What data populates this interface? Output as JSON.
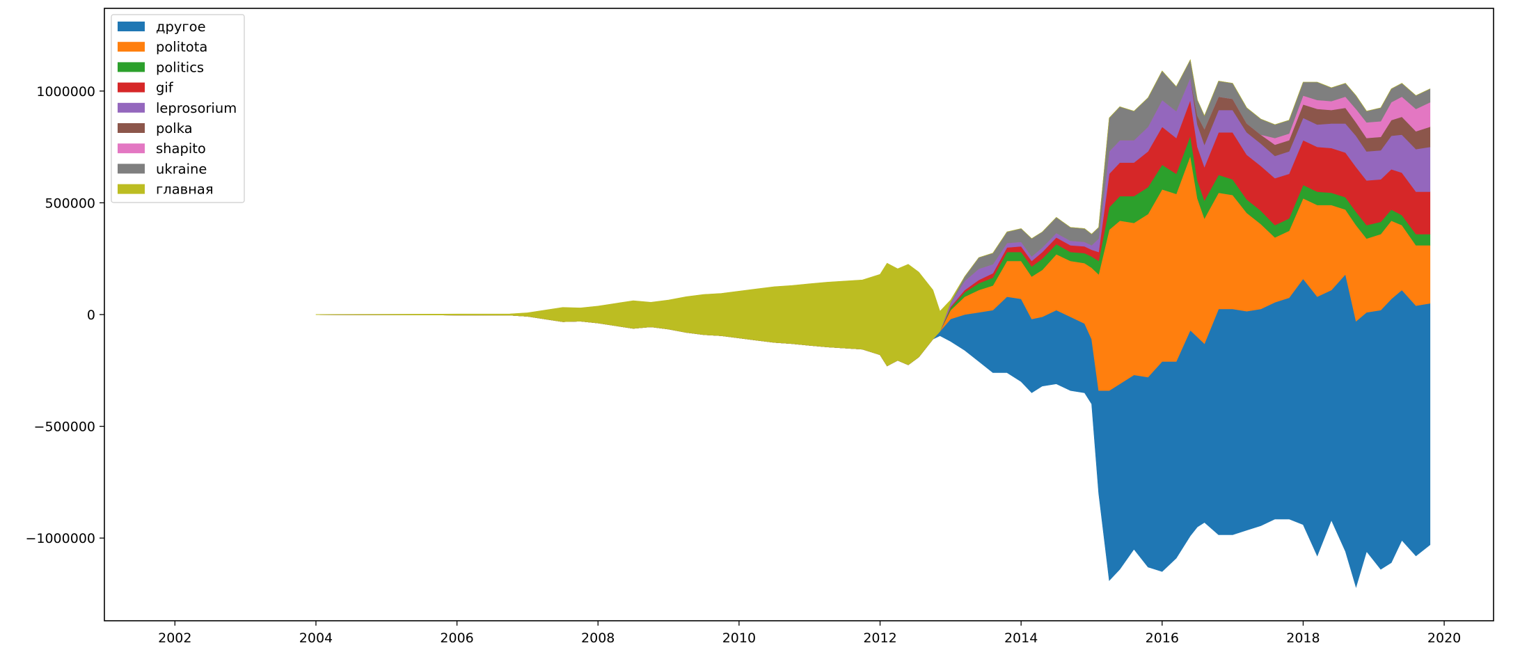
{
  "chart_data": {
    "type": "area",
    "subtype": "streamgraph",
    "title": "",
    "xlabel": "",
    "ylabel": "",
    "xlim": [
      2001.0,
      2020.7
    ],
    "ylim": [
      -1370000,
      1370000
    ],
    "x_ticks": [
      2002,
      2004,
      2006,
      2008,
      2010,
      2012,
      2014,
      2016,
      2018,
      2020
    ],
    "y_ticks": [
      -1000000,
      -500000,
      0,
      500000,
      1000000
    ],
    "y_tick_labels": [
      "−1000000",
      "−500000",
      "0",
      "500000",
      "1000000"
    ],
    "legend_position": "upper left",
    "grid": false,
    "x": [
      2004.0,
      2005.0,
      2006.0,
      2006.75,
      2007.0,
      2007.25,
      2007.5,
      2007.75,
      2008.0,
      2008.25,
      2008.5,
      2008.75,
      2009.0,
      2009.25,
      2009.5,
      2009.75,
      2010.0,
      2010.25,
      2010.5,
      2010.75,
      2011.0,
      2011.25,
      2011.5,
      2011.75,
      2012.0,
      2012.1,
      2012.25,
      2012.4,
      2012.55,
      2012.75,
      2012.85,
      2013.0,
      2013.2,
      2013.4,
      2013.6,
      2013.8,
      2014.0,
      2014.15,
      2014.3,
      2014.5,
      2014.7,
      2014.9,
      2015.0,
      2015.1,
      2015.25,
      2015.4,
      2015.6,
      2015.8,
      2016.0,
      2016.2,
      2016.4,
      2016.5,
      2016.6,
      2016.8,
      2017.0,
      2017.2,
      2017.4,
      2017.6,
      2017.8,
      2018.0,
      2018.2,
      2018.4,
      2018.6,
      2018.75,
      2018.9,
      2019.1,
      2019.25,
      2019.4,
      2019.6,
      2019.8
    ],
    "baseline": [
      -500,
      -1500,
      -2500,
      -3000,
      -8000,
      -20000,
      -32000,
      -30000,
      -38000,
      -50000,
      -62000,
      -55000,
      -65000,
      -80000,
      -90000,
      -95000,
      -105000,
      -115000,
      -125000,
      -130000,
      -138000,
      -145000,
      -150000,
      -155000,
      -180000,
      -230000,
      -205000,
      -225000,
      -190000,
      -110000,
      -95000,
      -120000,
      -160000,
      -210000,
      -260000,
      -260000,
      -300000,
      -350000,
      -320000,
      -310000,
      -340000,
      -350000,
      -400000,
      -800000,
      -1190000,
      -1140000,
      -1050000,
      -1130000,
      -1150000,
      -1090000,
      -990000,
      -950000,
      -930000,
      -985000,
      -985000,
      -965000,
      -945000,
      -915000,
      -915000,
      -940000,
      -1080000,
      -920000,
      -1060000,
      -1220000,
      -1060000,
      -1140000,
      -1110000,
      -1010000,
      -1080000,
      -1030000
    ],
    "series": [
      {
        "name": "другое",
        "color": "#1f77b4",
        "values": [
          0,
          0,
          0,
          0,
          0,
          0,
          0,
          0,
          0,
          0,
          0,
          0,
          0,
          0,
          0,
          0,
          0,
          0,
          0,
          0,
          0,
          0,
          0,
          0,
          0,
          0,
          0,
          0,
          0,
          0,
          20000,
          100000,
          160000,
          220000,
          280000,
          340000,
          370000,
          330000,
          310000,
          330000,
          330000,
          310000,
          290000,
          460000,
          850000,
          830000,
          780000,
          850000,
          940000,
          880000,
          920000,
          850000,
          800000,
          1010000,
          1010000,
          980000,
          970000,
          970000,
          990000,
          1100000,
          1160000,
          1030000,
          1240000,
          1190000,
          1070000,
          1160000,
          1180000,
          1120000,
          1120000,
          1080000
        ]
      },
      {
        "name": "politota",
        "color": "#ff7f0e",
        "values": [
          0,
          0,
          0,
          0,
          0,
          0,
          0,
          0,
          0,
          0,
          0,
          0,
          0,
          0,
          0,
          0,
          0,
          0,
          0,
          0,
          0,
          0,
          0,
          0,
          0,
          0,
          0,
          0,
          0,
          0,
          0,
          40000,
          80000,
          100000,
          110000,
          160000,
          170000,
          190000,
          210000,
          250000,
          250000,
          270000,
          320000,
          520000,
          720000,
          730000,
          680000,
          730000,
          770000,
          750000,
          780000,
          620000,
          560000,
          520000,
          510000,
          440000,
          380000,
          290000,
          300000,
          360000,
          410000,
          380000,
          290000,
          430000,
          330000,
          340000,
          350000,
          290000,
          270000,
          260000
        ]
      },
      {
        "name": "politics",
        "color": "#2ca02c",
        "values": [
          0,
          0,
          0,
          0,
          0,
          0,
          0,
          0,
          0,
          0,
          0,
          0,
          0,
          0,
          0,
          0,
          0,
          0,
          0,
          0,
          0,
          0,
          0,
          0,
          0,
          0,
          0,
          0,
          0,
          0,
          0,
          10000,
          20000,
          30000,
          35000,
          40000,
          40000,
          45000,
          50000,
          45000,
          40000,
          45000,
          50000,
          60000,
          100000,
          110000,
          120000,
          120000,
          110000,
          90000,
          90000,
          80000,
          80000,
          80000,
          70000,
          60000,
          60000,
          55000,
          55000,
          60000,
          60000,
          55000,
          55000,
          60000,
          60000,
          55000,
          50000,
          45000,
          50000,
          50000
        ]
      },
      {
        "name": "gif",
        "color": "#d62728",
        "values": [
          0,
          0,
          0,
          0,
          0,
          0,
          0,
          0,
          0,
          0,
          0,
          0,
          0,
          0,
          0,
          0,
          0,
          0,
          0,
          0,
          0,
          0,
          0,
          0,
          0,
          0,
          0,
          0,
          0,
          0,
          0,
          5000,
          10000,
          15000,
          20000,
          20000,
          25000,
          25000,
          30000,
          30000,
          30000,
          30000,
          30000,
          40000,
          150000,
          150000,
          150000,
          160000,
          170000,
          160000,
          160000,
          150000,
          150000,
          190000,
          210000,
          200000,
          200000,
          210000,
          200000,
          200000,
          200000,
          200000,
          200000,
          200000,
          200000,
          190000,
          180000,
          190000,
          190000,
          190000
        ]
      },
      {
        "name": "leprosorium",
        "color": "#9467bd",
        "values": [
          0,
          0,
          0,
          0,
          0,
          0,
          0,
          0,
          0,
          0,
          0,
          0,
          0,
          0,
          0,
          0,
          0,
          0,
          0,
          0,
          0,
          0,
          0,
          0,
          0,
          0,
          0,
          0,
          0,
          0,
          0,
          15000,
          40000,
          50000,
          40000,
          20000,
          20000,
          20000,
          20000,
          20000,
          20000,
          20000,
          20000,
          60000,
          100000,
          100000,
          100000,
          110000,
          120000,
          120000,
          100000,
          100000,
          100000,
          100000,
          100000,
          100000,
          100000,
          100000,
          100000,
          100000,
          100000,
          110000,
          130000,
          140000,
          130000,
          130000,
          150000,
          170000,
          190000,
          200000
        ]
      },
      {
        "name": "polka",
        "color": "#8c564b",
        "values": [
          0,
          0,
          0,
          0,
          0,
          0,
          0,
          0,
          0,
          0,
          0,
          0,
          0,
          0,
          0,
          0,
          0,
          0,
          0,
          0,
          0,
          0,
          0,
          0,
          0,
          0,
          0,
          0,
          0,
          0,
          0,
          0,
          0,
          0,
          0,
          0,
          0,
          0,
          0,
          0,
          0,
          0,
          0,
          0,
          0,
          0,
          0,
          0,
          0,
          0,
          0,
          40000,
          70000,
          60000,
          50000,
          40000,
          40000,
          50000,
          50000,
          60000,
          70000,
          60000,
          70000,
          60000,
          60000,
          60000,
          70000,
          80000,
          80000,
          90000
        ]
      },
      {
        "name": "shapito",
        "color": "#e377c2",
        "values": [
          0,
          0,
          0,
          0,
          0,
          0,
          0,
          0,
          0,
          0,
          0,
          0,
          0,
          0,
          0,
          0,
          0,
          0,
          0,
          0,
          0,
          0,
          0,
          0,
          0,
          0,
          0,
          0,
          0,
          0,
          0,
          0,
          0,
          0,
          0,
          0,
          0,
          0,
          0,
          0,
          0,
          0,
          0,
          0,
          0,
          0,
          0,
          0,
          0,
          0,
          0,
          0,
          0,
          0,
          0,
          0,
          0,
          30000,
          30000,
          40000,
          40000,
          40000,
          50000,
          60000,
          70000,
          70000,
          80000,
          90000,
          100000,
          110000
        ]
      },
      {
        "name": "ukraine",
        "color": "#7f7f7f",
        "values": [
          0,
          0,
          0,
          0,
          0,
          0,
          0,
          0,
          0,
          0,
          0,
          0,
          0,
          0,
          0,
          0,
          0,
          0,
          0,
          0,
          0,
          0,
          0,
          0,
          0,
          0,
          0,
          0,
          0,
          0,
          0,
          5000,
          20000,
          50000,
          50000,
          50000,
          60000,
          80000,
          70000,
          70000,
          60000,
          60000,
          50000,
          50000,
          150000,
          150000,
          130000,
          130000,
          130000,
          110000,
          80000,
          70000,
          60000,
          70000,
          70000,
          70000,
          70000,
          60000,
          60000,
          60000,
          80000,
          60000,
          60000,
          60000,
          50000,
          60000,
          60000,
          60000,
          60000,
          60000
        ]
      },
      {
        "name": "главная",
        "color": "#bcbd22",
        "values": [
          1000,
          3000,
          5000,
          6000,
          16000,
          40000,
          64000,
          60000,
          76000,
          100000,
          124000,
          110000,
          130000,
          160000,
          180000,
          190000,
          210000,
          230000,
          250000,
          260000,
          276000,
          290000,
          300000,
          310000,
          360000,
          460000,
          410000,
          450000,
          380000,
          220000,
          90000,
          10000,
          0,
          0,
          0,
          0,
          0,
          0,
          0,
          0,
          0,
          0,
          0,
          0,
          0,
          0,
          0,
          0,
          0,
          0,
          0,
          0,
          0,
          0,
          0,
          0,
          0,
          0,
          0,
          0,
          0,
          0,
          0,
          0,
          0,
          0,
          0,
          0,
          0,
          0
        ]
      }
    ]
  }
}
